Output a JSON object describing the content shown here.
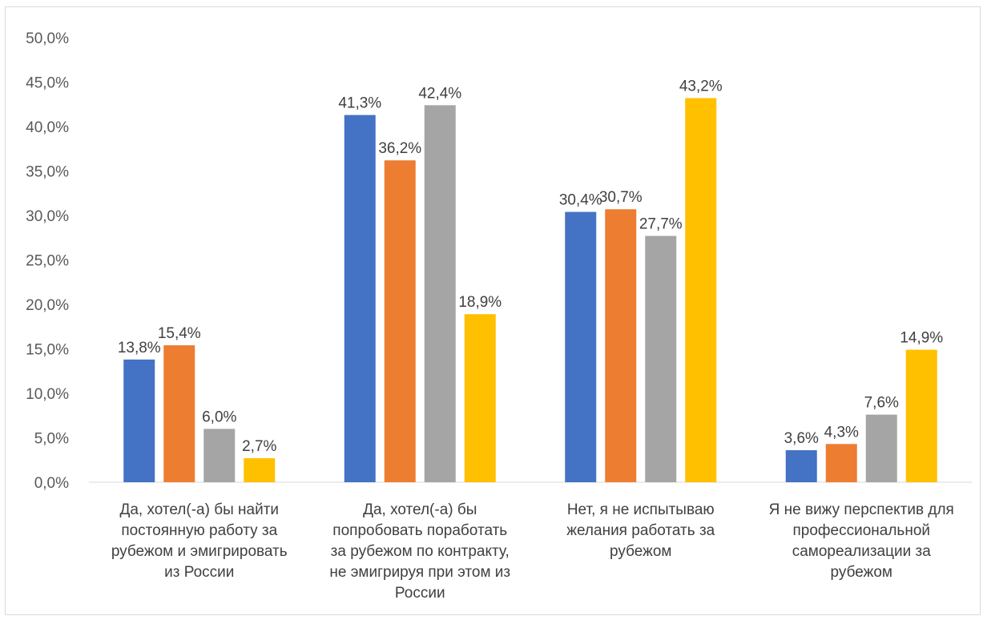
{
  "chart_data": {
    "type": "bar",
    "categories": [
      [
        "Да, хотел(-а) бы найти",
        "постоянную работу за",
        "рубежом и эмигрировать",
        "из России"
      ],
      [
        "Да, хотел(-а) бы",
        "попробовать поработать",
        "за рубежом по контракту,",
        "не эмигрируя при этом из",
        "России"
      ],
      [
        "Нет, я не испытываю",
        "желания работать за",
        "рубежом"
      ],
      [
        "Я не вижу перспектив для",
        "профессиональной",
        "самореализации за",
        "рубежом"
      ]
    ],
    "series": [
      {
        "color": "#4472C4",
        "values": [
          13.8,
          41.3,
          30.4,
          3.6
        ],
        "labels": [
          "13,8%",
          "41,3%",
          "30,4%",
          "3,6%"
        ]
      },
      {
        "color": "#ED7D31",
        "values": [
          15.4,
          36.2,
          30.7,
          4.3
        ],
        "labels": [
          "15,4%",
          "36,2%",
          "30,7%",
          "4,3%"
        ]
      },
      {
        "color": "#A5A5A5",
        "values": [
          6.0,
          42.4,
          27.7,
          7.6
        ],
        "labels": [
          "6,0%",
          "42,4%",
          "27,7%",
          "7,6%"
        ]
      },
      {
        "color": "#FFC000",
        "values": [
          2.7,
          18.9,
          43.2,
          14.9
        ],
        "labels": [
          "2,7%",
          "18,9%",
          "43,2%",
          "14,9%"
        ]
      }
    ],
    "yticks": [
      "0,0%",
      "5,0%",
      "10,0%",
      "15,0%",
      "20,0%",
      "25,0%",
      "30,0%",
      "35,0%",
      "40,0%",
      "45,0%",
      "50,0%"
    ],
    "ylim": [
      0,
      50
    ],
    "title": "",
    "xlabel": "",
    "ylabel": "",
    "grid": false,
    "legend": "none"
  }
}
